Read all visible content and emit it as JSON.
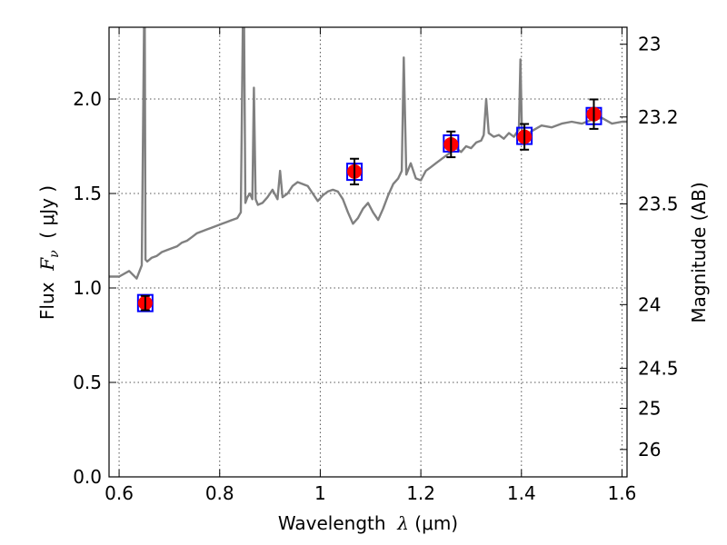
{
  "chart_data": {
    "type": "line",
    "xlabel_text": "Wavelength  ",
    "xlabel_symbol": "λ",
    "xlabel_unit": " (μm)",
    "ylabel_text": "Flux  ",
    "ylabel_symbol": "F",
    "ylabel_sub": "ν",
    "ylabel_unit": "  ( μJy )",
    "y2label": "Magnitude (AB)",
    "xlim": [
      0.58,
      1.61
    ],
    "ylim": [
      0.0,
      2.38
    ],
    "grid": true,
    "x_ticks": [
      0.6,
      0.8,
      1.0,
      1.2,
      1.4,
      1.6
    ],
    "x_tick_labels": [
      "0.6",
      "0.8",
      "1",
      "1.2",
      "1.4",
      "1.6"
    ],
    "y_ticks": [
      0.0,
      0.5,
      1.0,
      1.5,
      2.0
    ],
    "y_tick_labels": [
      "0.0",
      "0.5",
      "1.0",
      "1.5",
      "2.0"
    ],
    "y2_ticks": [
      {
        "label": "23",
        "flux": 2.29
      },
      {
        "label": "23.2",
        "flux": 1.905
      },
      {
        "label": "23.5",
        "flux": 1.445
      },
      {
        "label": "24",
        "flux": 0.912
      },
      {
        "label": "24.5",
        "flux": 0.575
      },
      {
        "label": "25",
        "flux": 0.363
      },
      {
        "label": "26",
        "flux": 0.145
      }
    ],
    "series": [
      {
        "kind": "spectrum",
        "color": "#808080",
        "x": [
          0.58,
          0.6,
          0.62,
          0.635,
          0.645,
          0.6495,
          0.651,
          0.6525,
          0.656,
          0.665,
          0.675,
          0.685,
          0.695,
          0.705,
          0.715,
          0.725,
          0.735,
          0.745,
          0.755,
          0.765,
          0.775,
          0.785,
          0.795,
          0.805,
          0.815,
          0.825,
          0.835,
          0.842,
          0.846,
          0.8485,
          0.851,
          0.855,
          0.86,
          0.865,
          0.868,
          0.8715,
          0.876,
          0.885,
          0.895,
          0.905,
          0.915,
          0.92,
          0.925,
          0.935,
          0.945,
          0.955,
          0.965,
          0.975,
          0.985,
          0.995,
          1.005,
          1.015,
          1.025,
          1.035,
          1.045,
          1.055,
          1.065,
          1.075,
          1.085,
          1.095,
          1.105,
          1.115,
          1.125,
          1.135,
          1.145,
          1.155,
          1.162,
          1.166,
          1.171,
          1.18,
          1.19,
          1.2,
          1.21,
          1.22,
          1.23,
          1.24,
          1.25,
          1.26,
          1.27,
          1.28,
          1.29,
          1.3,
          1.31,
          1.32,
          1.325,
          1.33,
          1.335,
          1.345,
          1.355,
          1.365,
          1.375,
          1.385,
          1.395,
          1.398,
          1.401,
          1.406,
          1.42,
          1.44,
          1.46,
          1.48,
          1.5,
          1.52,
          1.54,
          1.56,
          1.58,
          1.6,
          1.61
        ],
        "y": [
          1.06,
          1.06,
          1.09,
          1.05,
          1.12,
          2.38,
          2.38,
          1.15,
          1.14,
          1.16,
          1.17,
          1.19,
          1.2,
          1.21,
          1.22,
          1.24,
          1.25,
          1.27,
          1.29,
          1.3,
          1.31,
          1.32,
          1.33,
          1.34,
          1.35,
          1.36,
          1.37,
          1.4,
          2.38,
          2.38,
          1.45,
          1.48,
          1.5,
          1.47,
          2.06,
          1.47,
          1.44,
          1.45,
          1.48,
          1.52,
          1.47,
          1.62,
          1.48,
          1.5,
          1.54,
          1.56,
          1.55,
          1.54,
          1.5,
          1.46,
          1.49,
          1.51,
          1.52,
          1.51,
          1.47,
          1.4,
          1.34,
          1.37,
          1.42,
          1.45,
          1.4,
          1.36,
          1.42,
          1.49,
          1.55,
          1.58,
          1.62,
          2.22,
          1.6,
          1.66,
          1.58,
          1.57,
          1.62,
          1.64,
          1.66,
          1.68,
          1.7,
          1.72,
          1.74,
          1.72,
          1.75,
          1.74,
          1.77,
          1.78,
          1.81,
          2.0,
          1.82,
          1.8,
          1.81,
          1.79,
          1.82,
          1.8,
          1.84,
          2.21,
          1.83,
          1.8,
          1.83,
          1.86,
          1.85,
          1.87,
          1.88,
          1.87,
          1.89,
          1.9,
          1.87,
          1.88,
          1.88
        ]
      },
      {
        "kind": "observed",
        "color": "#ff0000",
        "x": [
          0.652,
          1.068,
          1.26,
          1.406,
          1.544
        ],
        "y": [
          0.92,
          1.616,
          1.76,
          1.8,
          1.92
        ],
        "yerr": [
          0.038,
          0.068,
          0.068,
          0.068,
          0.078
        ]
      },
      {
        "kind": "model",
        "color": "#0000ff",
        "x": [
          0.652,
          1.068,
          1.26,
          1.406,
          1.544
        ],
        "y": [
          0.92,
          1.615,
          1.765,
          1.805,
          1.91
        ]
      }
    ]
  }
}
